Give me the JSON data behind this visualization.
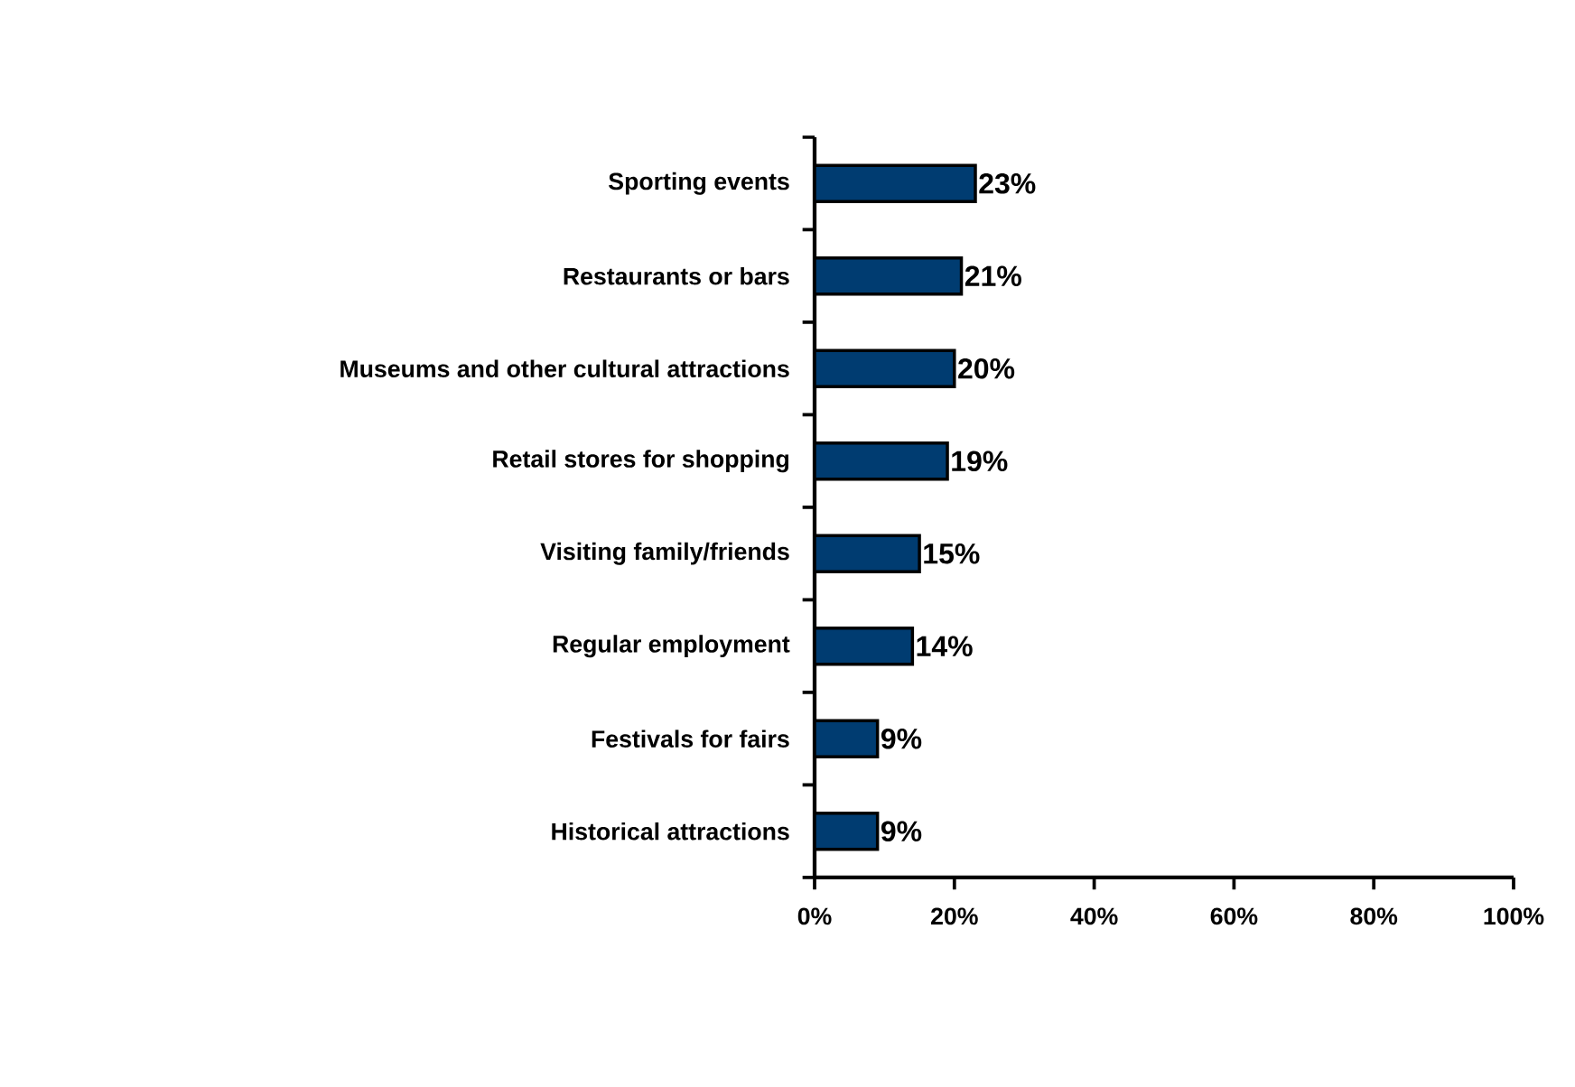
{
  "chart_data": {
    "type": "bar",
    "orientation": "horizontal",
    "categories": [
      "Sporting events",
      "Restaurants or bars",
      "Museums and other cultural attractions",
      "Retail stores for shopping",
      "Visiting family/friends",
      "Regular employment",
      "Festivals for fairs",
      "Historical attractions"
    ],
    "values": [
      23,
      21,
      20,
      19,
      15,
      14,
      9,
      9
    ],
    "value_labels": [
      "23%",
      "21%",
      "20%",
      "19%",
      "15%",
      "14%",
      "9%",
      "9%"
    ],
    "color": "#003c71",
    "xlim": [
      0,
      100
    ],
    "xticks": [
      {
        "value": 0,
        "label": "0%"
      },
      {
        "value": 20,
        "label": "20%"
      },
      {
        "value": 40,
        "label": "40%"
      },
      {
        "value": 60,
        "label": "60%"
      },
      {
        "value": 80,
        "label": "80%"
      },
      {
        "value": 100,
        "label": "100%"
      }
    ]
  }
}
